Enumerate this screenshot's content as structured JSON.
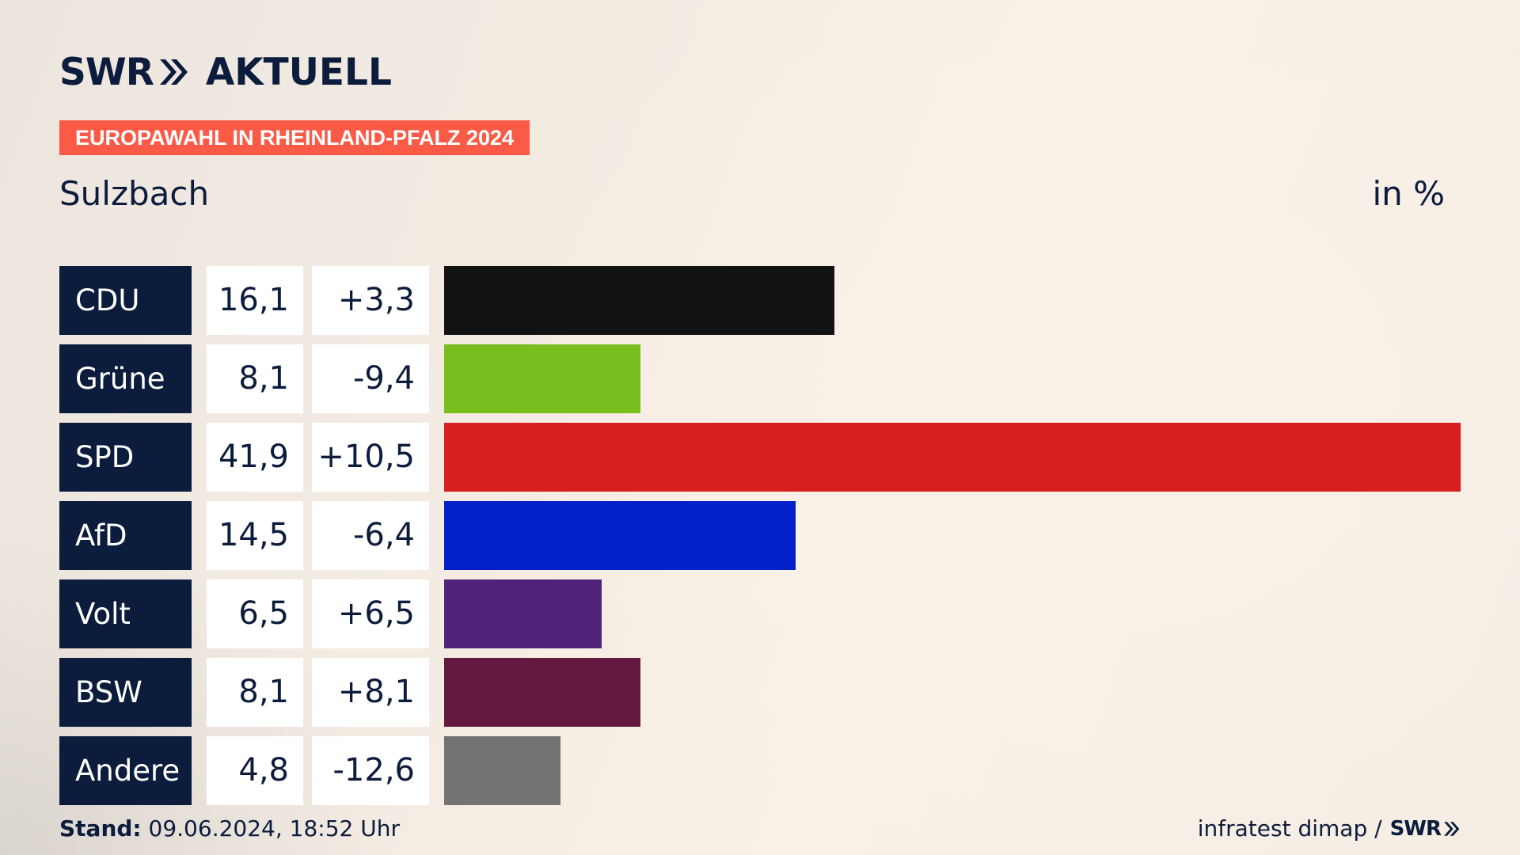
{
  "brand": {
    "logo_swr": "SWR",
    "logo_aktuell": "AKTUELL",
    "arrow_icon": "double-chevron-icon"
  },
  "badge": "EUROPAWAHL IN RHEINLAND-PFALZ 2024",
  "region": "Sulzbach",
  "unit": "in %",
  "footer": {
    "stand_label": "Stand:",
    "stand_value": "09.06.2024, 18:52 Uhr",
    "source": "infratest dimap /",
    "source_brand": "SWR"
  },
  "chart_data": {
    "type": "bar",
    "orientation": "horizontal",
    "categories": [
      "CDU",
      "Grüne",
      "SPD",
      "AfD",
      "Volt",
      "BSW",
      "Andere"
    ],
    "values": [
      16.1,
      8.1,
      41.9,
      14.5,
      6.5,
      8.1,
      4.8
    ],
    "value_labels": [
      "16,1",
      "8,1",
      "41,9",
      "14,5",
      "6,5",
      "8,1",
      "4,8"
    ],
    "diff_labels": [
      "+3,3",
      "-9,4",
      "+10,5",
      "-6,4",
      "+6,5",
      "+8,1",
      "-12,6"
    ],
    "colors": [
      "#121212",
      "#78be1e",
      "#d71f1f",
      "#0021c8",
      "#502379",
      "#641a3e",
      "#737373"
    ],
    "xlim": [
      0,
      41.9
    ],
    "grid": false
  }
}
